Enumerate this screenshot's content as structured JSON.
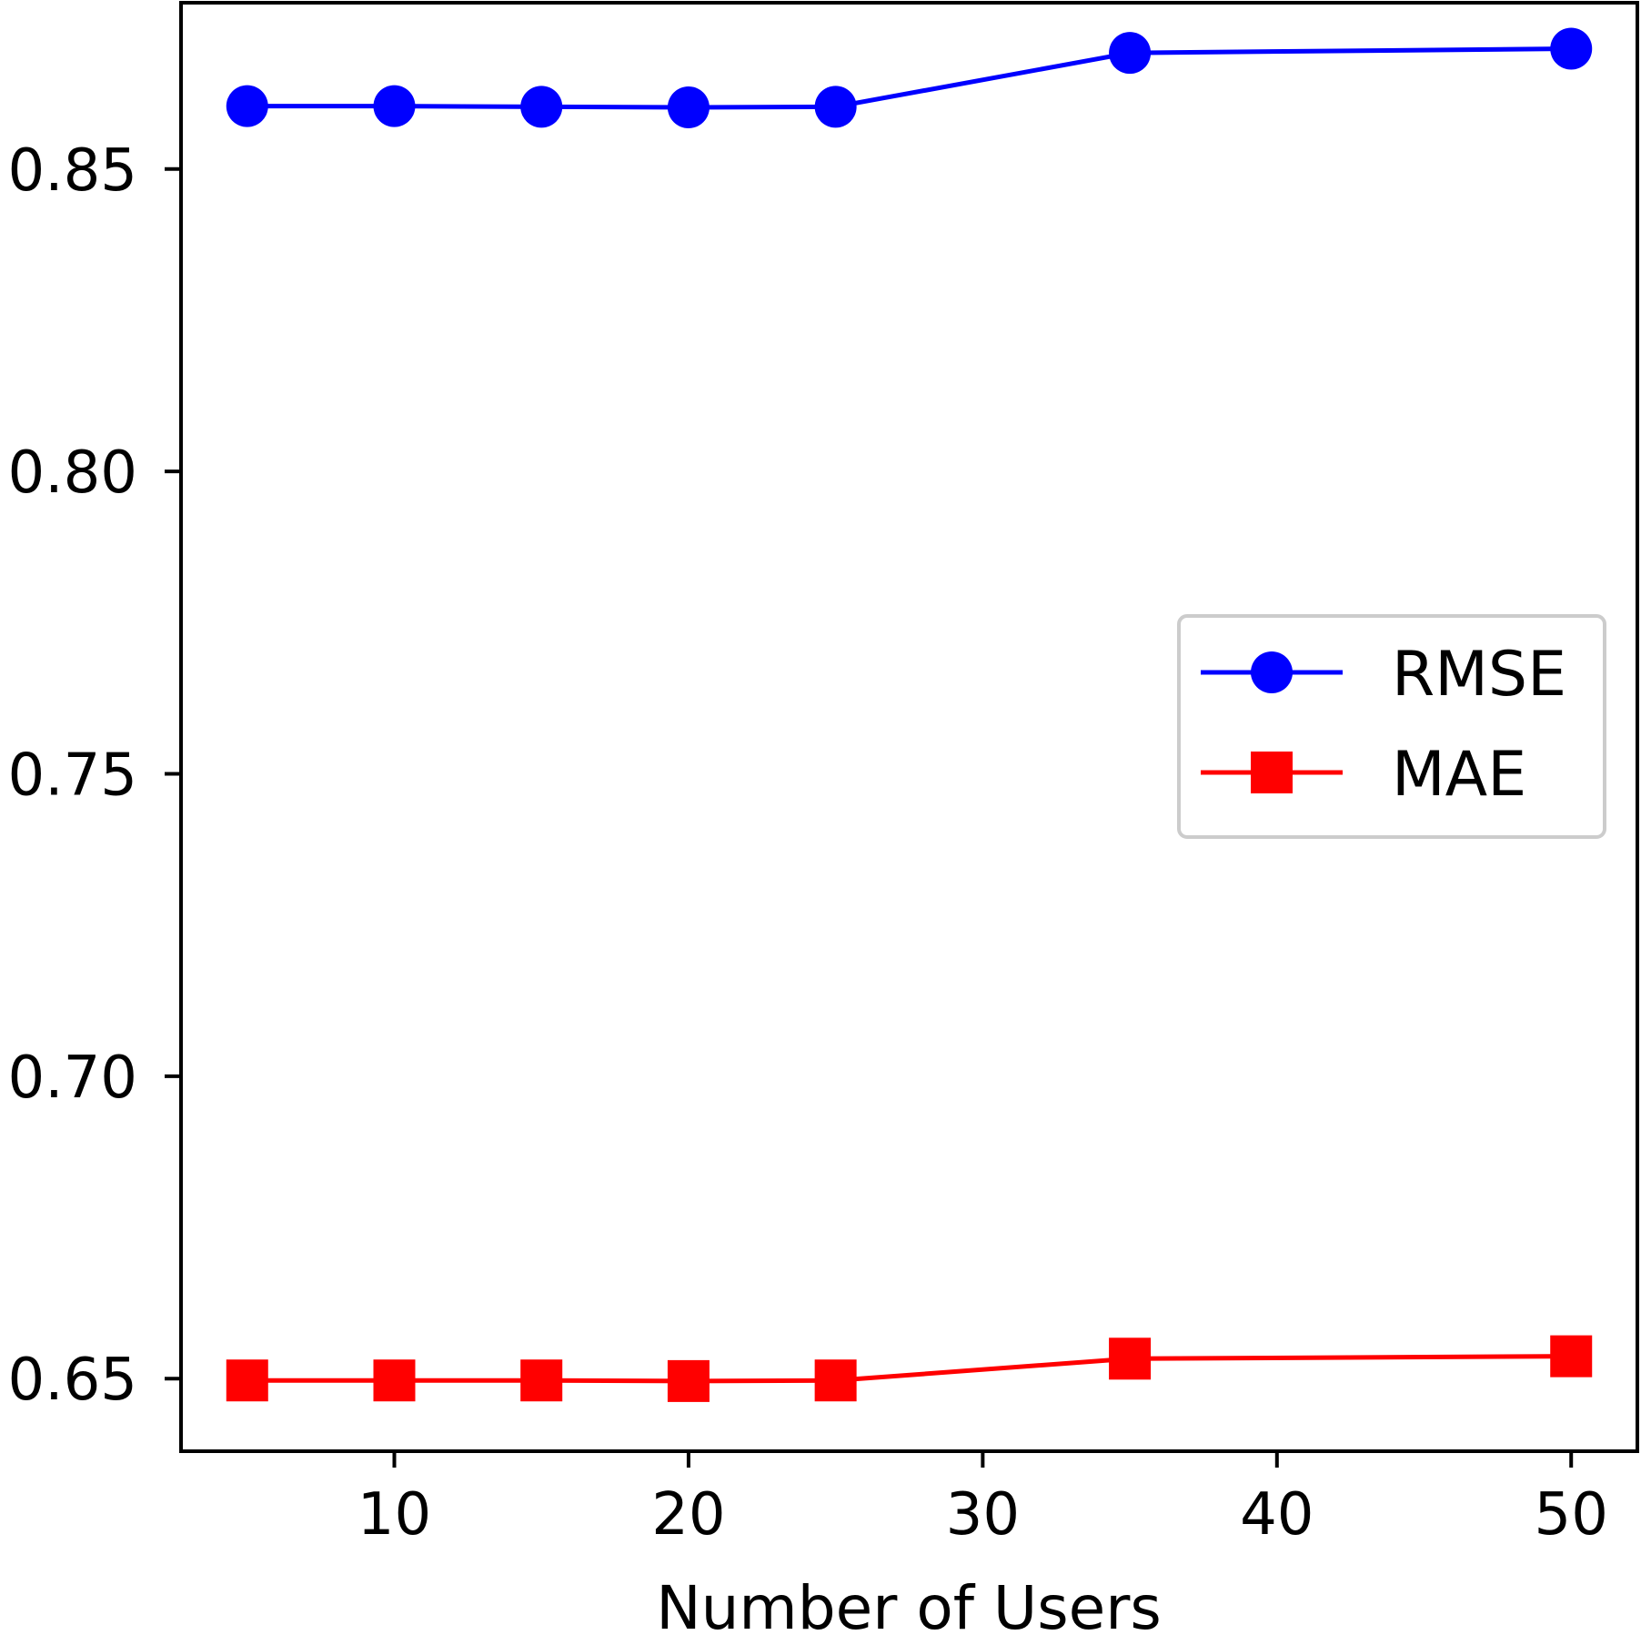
{
  "chart_data": {
    "type": "line",
    "title": "",
    "xlabel": "Number of Users",
    "ylabel": "",
    "x": [
      5,
      10,
      15,
      20,
      25,
      35,
      50
    ],
    "xlim": [
      2.75,
      52.25
    ],
    "ylim": [
      0.638,
      0.8775
    ],
    "xticks": [
      10,
      20,
      30,
      40,
      50
    ],
    "xtick_labels": [
      "10",
      "20",
      "30",
      "40",
      "50"
    ],
    "yticks": [
      0.65,
      0.7,
      0.75,
      0.8,
      0.85
    ],
    "ytick_labels": [
      "0.65",
      "0.70",
      "0.75",
      "0.80",
      "0.85"
    ],
    "grid": false,
    "legend_position": "center-right",
    "series": [
      {
        "name": "RMSE",
        "color": "#0000ff",
        "marker": "circle",
        "values": [
          0.8604,
          0.8604,
          0.8603,
          0.8602,
          0.8603,
          0.8692,
          0.8699
        ]
      },
      {
        "name": "MAE",
        "color": "#ff0000",
        "marker": "square",
        "values": [
          0.6497,
          0.6497,
          0.6497,
          0.6496,
          0.6497,
          0.6533,
          0.6537
        ]
      }
    ]
  }
}
